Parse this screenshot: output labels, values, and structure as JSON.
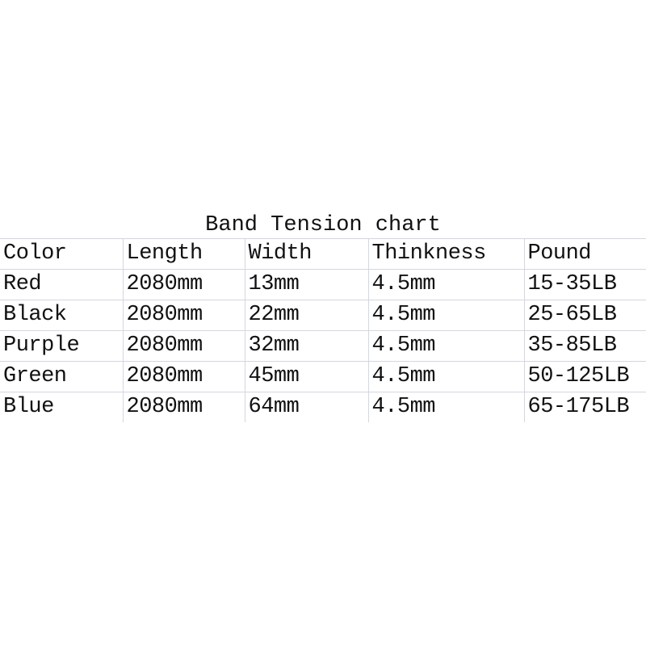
{
  "title": "Band Tension chart",
  "headers": [
    "Color",
    "Length",
    "Width",
    "Thinkness",
    "Pound"
  ],
  "rows": [
    [
      "Red",
      "2080mm",
      "13mm",
      "4.5mm",
      "15-35LB"
    ],
    [
      "Black",
      "2080mm",
      "22mm",
      "4.5mm",
      "25-65LB"
    ],
    [
      "Purple",
      "2080mm",
      "32mm",
      "4.5mm",
      "35-85LB"
    ],
    [
      "Green",
      "2080mm",
      "45mm",
      "4.5mm",
      "50-125LB"
    ],
    [
      "Blue",
      "2080mm",
      "64mm",
      "4.5mm",
      "65-175LB"
    ]
  ],
  "colors": {
    "grid": "#d3d7e0",
    "text": "#111111",
    "background": "#ffffff"
  }
}
